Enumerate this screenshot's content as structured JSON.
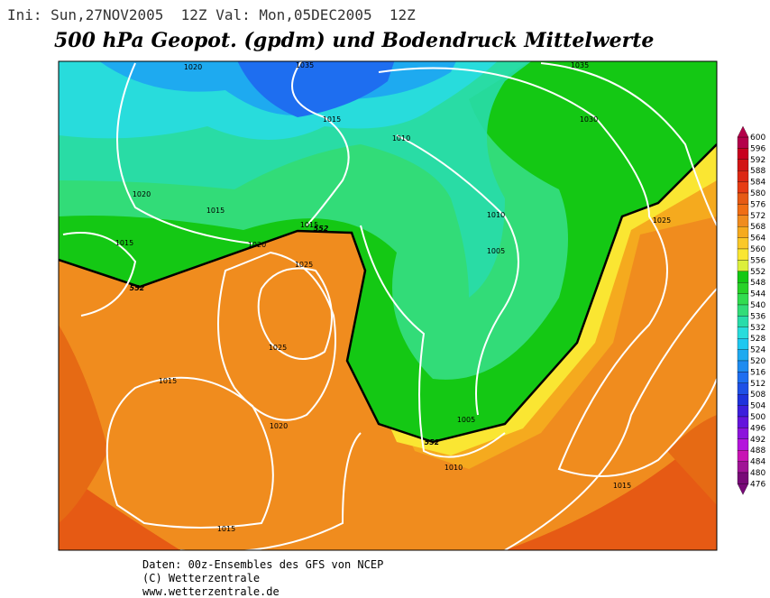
{
  "header": {
    "init": "Ini: Sun,27NOV2005  12Z Val: Mon,05DEC2005  12Z",
    "title": "500 hPa Geopot. (gpdm) und Bodendruck Mittelwerte"
  },
  "map": {
    "contour_labels": [
      1035,
      1035,
      1030,
      1025,
      1025,
      1025,
      1020,
      1020,
      1020,
      1020,
      1015,
      1015,
      1015,
      1015,
      1015,
      1015,
      1015,
      1010,
      1010,
      1010,
      1005,
      1005,
      552,
      552,
      552
    ]
  },
  "colorbar": {
    "levels": [
      600,
      596,
      592,
      588,
      584,
      580,
      576,
      572,
      568,
      564,
      560,
      556,
      552,
      548,
      544,
      540,
      536,
      532,
      528,
      524,
      520,
      516,
      512,
      508,
      504,
      500,
      496,
      492,
      488,
      484,
      480,
      476
    ],
    "colors": [
      "#b4004a",
      "#c8001e",
      "#d21414",
      "#dc2814",
      "#e63c14",
      "#e65a14",
      "#f06e14",
      "#f08c1e",
      "#f5aa1e",
      "#fac828",
      "#fae632",
      "#dcf03c",
      "#14c814",
      "#28d228",
      "#32dc50",
      "#32dc78",
      "#28dcaa",
      "#28dcdc",
      "#1ec8f0",
      "#1eaaf0",
      "#1e8cf0",
      "#1e6ef0",
      "#1e50e6",
      "#1e32dc",
      "#3c1edc",
      "#6414dc",
      "#8c14dc",
      "#b414dc",
      "#c814b4",
      "#a01496",
      "#780a78"
    ]
  },
  "footer": {
    "lines": [
      "Daten: 00z-Ensembles des GFS von NCEP",
      "(C) Wetterzentrale",
      "www.wetterzentrale.de"
    ]
  }
}
